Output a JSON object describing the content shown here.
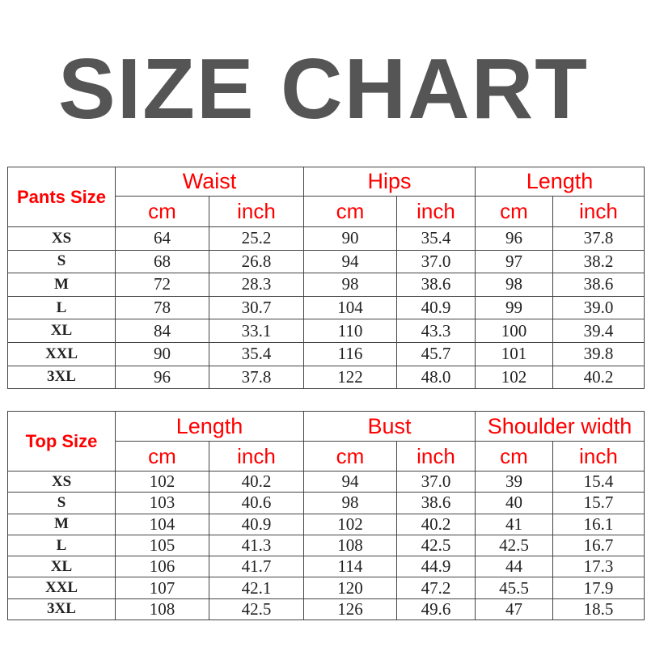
{
  "title": "SIZE CHART",
  "colors": {
    "title": "#555555",
    "header": "#ff0000",
    "text": "#222222"
  },
  "tables": [
    {
      "id": "pants",
      "size_header": "Pants Size",
      "groups": [
        "Waist",
        "Hips",
        "Length"
      ],
      "units": [
        "cm",
        "inch",
        "cm",
        "inch",
        "cm",
        "inch"
      ],
      "rows": [
        [
          "XS",
          "64",
          "25.2",
          "90",
          "35.4",
          "96",
          "37.8"
        ],
        [
          "S",
          "68",
          "26.8",
          "94",
          "37.0",
          "97",
          "38.2"
        ],
        [
          "M",
          "72",
          "28.3",
          "98",
          "38.6",
          "98",
          "38.6"
        ],
        [
          "L",
          "78",
          "30.7",
          "104",
          "40.9",
          "99",
          "39.0"
        ],
        [
          "XL",
          "84",
          "33.1",
          "110",
          "43.3",
          "100",
          "39.4"
        ],
        [
          "XXL",
          "90",
          "35.4",
          "116",
          "45.7",
          "101",
          "39.8"
        ],
        [
          "3XL",
          "96",
          "37.8",
          "122",
          "48.0",
          "102",
          "40.2"
        ]
      ]
    },
    {
      "id": "tops",
      "size_header": "Top Size",
      "groups": [
        "Length",
        "Bust",
        "Shoulder width"
      ],
      "units": [
        "cm",
        "inch",
        "cm",
        "inch",
        "cm",
        "inch"
      ],
      "rows": [
        [
          "XS",
          "102",
          "40.2",
          "94",
          "37.0",
          "39",
          "15.4"
        ],
        [
          "S",
          "103",
          "40.6",
          "98",
          "38.6",
          "40",
          "15.7"
        ],
        [
          "M",
          "104",
          "40.9",
          "102",
          "40.2",
          "41",
          "16.1"
        ],
        [
          "L",
          "105",
          "41.3",
          "108",
          "42.5",
          "42.5",
          "16.7"
        ],
        [
          "XL",
          "106",
          "41.7",
          "114",
          "44.9",
          "44",
          "17.3"
        ],
        [
          "XXL",
          "107",
          "42.1",
          "120",
          "47.2",
          "45.5",
          "17.9"
        ],
        [
          "3XL",
          "108",
          "42.5",
          "126",
          "49.6",
          "47",
          "18.5"
        ]
      ]
    }
  ]
}
